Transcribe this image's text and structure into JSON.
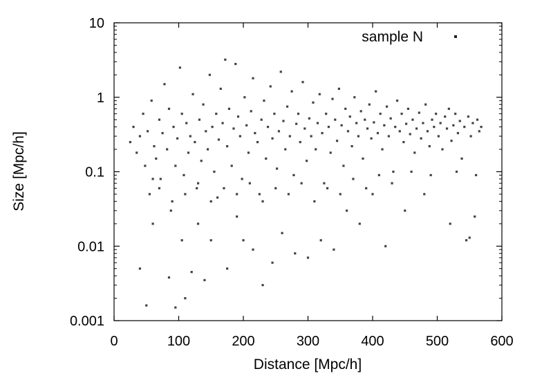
{
  "chart_data": {
    "type": "scatter",
    "title": "",
    "xlabel": "Distance [Mpc/h]",
    "ylabel": "Size [Mpc/h]",
    "x_scale": "linear",
    "y_scale": "log",
    "xlim": [
      0,
      600
    ],
    "ylim": [
      0.001,
      10
    ],
    "x_ticks": [
      0,
      100,
      200,
      300,
      400,
      500,
      600
    ],
    "x_tick_labels": [
      "0",
      "100",
      "200",
      "300",
      "400",
      "500",
      "600"
    ],
    "y_ticks": [
      0.001,
      0.01,
      0.1,
      1,
      10
    ],
    "y_tick_labels": [
      "0.001",
      "0.01",
      "0.1",
      "1",
      "10"
    ],
    "grid": false,
    "legend_position": "top-right",
    "series": [
      {
        "name": "sample N",
        "color": "#222222",
        "marker": "point",
        "points": [
          [
            25,
            0.25
          ],
          [
            30,
            0.4
          ],
          [
            35,
            0.18
          ],
          [
            40,
            0.3
          ],
          [
            45,
            0.6
          ],
          [
            48,
            0.12
          ],
          [
            52,
            0.35
          ],
          [
            55,
            0.05
          ],
          [
            58,
            0.9
          ],
          [
            62,
            0.22
          ],
          [
            65,
            0.15
          ],
          [
            70,
            0.5
          ],
          [
            72,
            0.08
          ],
          [
            75,
            0.33
          ],
          [
            78,
            1.5
          ],
          [
            82,
            0.2
          ],
          [
            85,
            0.7
          ],
          [
            88,
            0.03
          ],
          [
            92,
            0.4
          ],
          [
            95,
            0.12
          ],
          [
            98,
            0.28
          ],
          [
            102,
            2.5
          ],
          [
            105,
            0.6
          ],
          [
            108,
            0.09
          ],
          [
            112,
            0.45
          ],
          [
            115,
            0.18
          ],
          [
            118,
            0.3
          ],
          [
            122,
            1.1
          ],
          [
            125,
            0.25
          ],
          [
            128,
            0.06
          ],
          [
            132,
            0.5
          ],
          [
            135,
            0.14
          ],
          [
            138,
            0.8
          ],
          [
            142,
            0.35
          ],
          [
            145,
            0.2
          ],
          [
            148,
            2.0
          ],
          [
            152,
            0.4
          ],
          [
            155,
            0.1
          ],
          [
            158,
            0.6
          ],
          [
            162,
            0.27
          ],
          [
            165,
            1.3
          ],
          [
            168,
            0.45
          ],
          [
            172,
            3.2
          ],
          [
            175,
            0.22
          ],
          [
            178,
            0.7
          ],
          [
            182,
            0.12
          ],
          [
            185,
            0.38
          ],
          [
            188,
            2.8
          ],
          [
            192,
            0.55
          ],
          [
            195,
            0.3
          ],
          [
            198,
            0.08
          ],
          [
            202,
            1.0
          ],
          [
            205,
            0.42
          ],
          [
            208,
            0.18
          ],
          [
            212,
            0.65
          ],
          [
            215,
            1.8
          ],
          [
            218,
            0.33
          ],
          [
            222,
            0.25
          ],
          [
            225,
            0.05
          ],
          [
            228,
            0.5
          ],
          [
            232,
            0.9
          ],
          [
            235,
            0.15
          ],
          [
            238,
            0.4
          ],
          [
            242,
            1.4
          ],
          [
            245,
            0.28
          ],
          [
            248,
            0.6
          ],
          [
            252,
            0.11
          ],
          [
            255,
            0.35
          ],
          [
            258,
            2.2
          ],
          [
            262,
            0.48
          ],
          [
            265,
            0.2
          ],
          [
            268,
            0.75
          ],
          [
            272,
            0.3
          ],
          [
            275,
            1.2
          ],
          [
            278,
            0.09
          ],
          [
            282,
            0.44
          ],
          [
            285,
            0.6
          ],
          [
            288,
            0.25
          ],
          [
            292,
            1.6
          ],
          [
            295,
            0.38
          ],
          [
            298,
            0.14
          ],
          [
            302,
            0.52
          ],
          [
            305,
            0.3
          ],
          [
            308,
            0.85
          ],
          [
            312,
            0.2
          ],
          [
            315,
            0.45
          ],
          [
            318,
            1.1
          ],
          [
            322,
            0.33
          ],
          [
            325,
            0.07
          ],
          [
            328,
            0.6
          ],
          [
            332,
            0.4
          ],
          [
            335,
            0.18
          ],
          [
            338,
            0.95
          ],
          [
            342,
            0.5
          ],
          [
            345,
            0.26
          ],
          [
            348,
            1.3
          ],
          [
            352,
            0.42
          ],
          [
            355,
            0.12
          ],
          [
            358,
            0.7
          ],
          [
            362,
            0.35
          ],
          [
            365,
            0.55
          ],
          [
            368,
            0.22
          ],
          [
            372,
            1.0
          ],
          [
            375,
            0.45
          ],
          [
            378,
            0.3
          ],
          [
            382,
            0.65
          ],
          [
            385,
            0.15
          ],
          [
            388,
            0.5
          ],
          [
            392,
            0.38
          ],
          [
            395,
            0.8
          ],
          [
            398,
            0.28
          ],
          [
            402,
            0.46
          ],
          [
            405,
            1.2
          ],
          [
            408,
            0.33
          ],
          [
            412,
            0.6
          ],
          [
            415,
            0.2
          ],
          [
            418,
            0.42
          ],
          [
            422,
            0.75
          ],
          [
            425,
            0.3
          ],
          [
            428,
            0.52
          ],
          [
            432,
            0.1
          ],
          [
            435,
            0.4
          ],
          [
            438,
            0.9
          ],
          [
            442,
            0.35
          ],
          [
            445,
            0.6
          ],
          [
            448,
            0.25
          ],
          [
            452,
            0.44
          ],
          [
            455,
            0.7
          ],
          [
            458,
            0.32
          ],
          [
            462,
            0.5
          ],
          [
            465,
            0.18
          ],
          [
            468,
            0.38
          ],
          [
            472,
            0.62
          ],
          [
            475,
            0.28
          ],
          [
            478,
            0.45
          ],
          [
            482,
            0.8
          ],
          [
            485,
            0.35
          ],
          [
            488,
            0.22
          ],
          [
            492,
            0.5
          ],
          [
            495,
            0.4
          ],
          [
            498,
            0.6
          ],
          [
            502,
            0.3
          ],
          [
            505,
            0.45
          ],
          [
            508,
            0.2
          ],
          [
            512,
            0.55
          ],
          [
            515,
            0.38
          ],
          [
            518,
            0.7
          ],
          [
            522,
            0.26
          ],
          [
            525,
            0.42
          ],
          [
            528,
            0.6
          ],
          [
            532,
            0.33
          ],
          [
            535,
            0.48
          ],
          [
            538,
            0.15
          ],
          [
            542,
            0.4
          ],
          [
            545,
            0.012
          ],
          [
            548,
            0.55
          ],
          [
            552,
            0.3
          ],
          [
            555,
            0.45
          ],
          [
            558,
            0.025
          ],
          [
            562,
            0.5
          ],
          [
            565,
            0.35
          ],
          [
            568,
            0.4
          ],
          [
            40,
            0.005
          ],
          [
            50,
            0.0016
          ],
          [
            60,
            0.02
          ],
          [
            85,
            0.0038
          ],
          [
            95,
            0.0015
          ],
          [
            105,
            0.012
          ],
          [
            110,
            0.002
          ],
          [
            120,
            0.0045
          ],
          [
            130,
            0.02
          ],
          [
            140,
            0.0035
          ],
          [
            150,
            0.012
          ],
          [
            160,
            0.045
          ],
          [
            175,
            0.005
          ],
          [
            190,
            0.025
          ],
          [
            200,
            0.012
          ],
          [
            215,
            0.009
          ],
          [
            230,
            0.003
          ],
          [
            245,
            0.006
          ],
          [
            260,
            0.015
          ],
          [
            280,
            0.008
          ],
          [
            300,
            0.007
          ],
          [
            320,
            0.012
          ],
          [
            340,
            0.009
          ],
          [
            360,
            0.03
          ],
          [
            380,
            0.02
          ],
          [
            400,
            0.05
          ],
          [
            420,
            0.01
          ],
          [
            450,
            0.03
          ],
          [
            480,
            0.05
          ],
          [
            520,
            0.02
          ],
          [
            550,
            0.013
          ],
          [
            60,
            0.08
          ],
          [
            70,
            0.06
          ],
          [
            90,
            0.04
          ],
          [
            110,
            0.05
          ],
          [
            130,
            0.07
          ],
          [
            150,
            0.04
          ],
          [
            170,
            0.06
          ],
          [
            190,
            0.05
          ],
          [
            210,
            0.07
          ],
          [
            230,
            0.04
          ],
          [
            250,
            0.06
          ],
          [
            270,
            0.05
          ],
          [
            290,
            0.07
          ],
          [
            310,
            0.04
          ],
          [
            330,
            0.06
          ],
          [
            350,
            0.05
          ],
          [
            370,
            0.08
          ],
          [
            390,
            0.06
          ],
          [
            410,
            0.09
          ],
          [
            430,
            0.07
          ],
          [
            460,
            0.1
          ],
          [
            490,
            0.09
          ],
          [
            530,
            0.1
          ],
          [
            560,
            0.09
          ]
        ]
      }
    ]
  }
}
